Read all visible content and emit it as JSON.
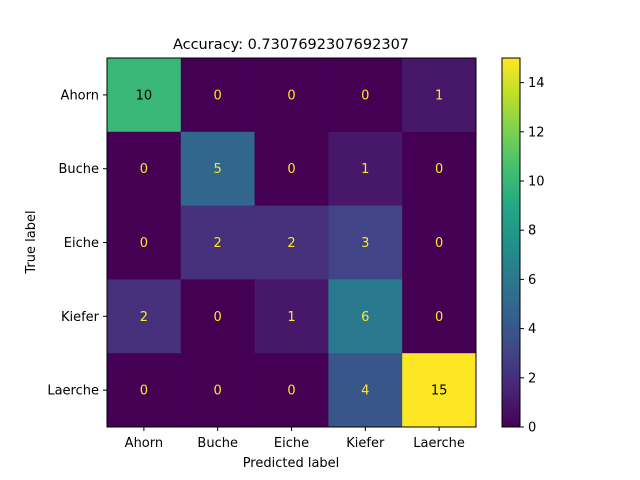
{
  "chart_data": {
    "type": "heatmap",
    "title": "Accuracy: 0.7307692307692307",
    "xlabel": "Predicted label",
    "ylabel": "True label",
    "x_categories": [
      "Ahorn",
      "Buche",
      "Eiche",
      "Kiefer",
      "Laerche"
    ],
    "y_categories": [
      "Ahorn",
      "Buche",
      "Eiche",
      "Kiefer",
      "Laerche"
    ],
    "values": [
      [
        10,
        0,
        0,
        0,
        1
      ],
      [
        0,
        5,
        0,
        1,
        0
      ],
      [
        0,
        2,
        2,
        3,
        0
      ],
      [
        2,
        0,
        1,
        6,
        0
      ],
      [
        0,
        0,
        0,
        4,
        15
      ]
    ],
    "colormap": "viridis",
    "vmin": 0,
    "vmax": 15,
    "colorbar_ticks": [
      0,
      2,
      4,
      6,
      8,
      10,
      12,
      14
    ],
    "text_color_dark": "#000000",
    "text_color_light": "#fde725"
  }
}
